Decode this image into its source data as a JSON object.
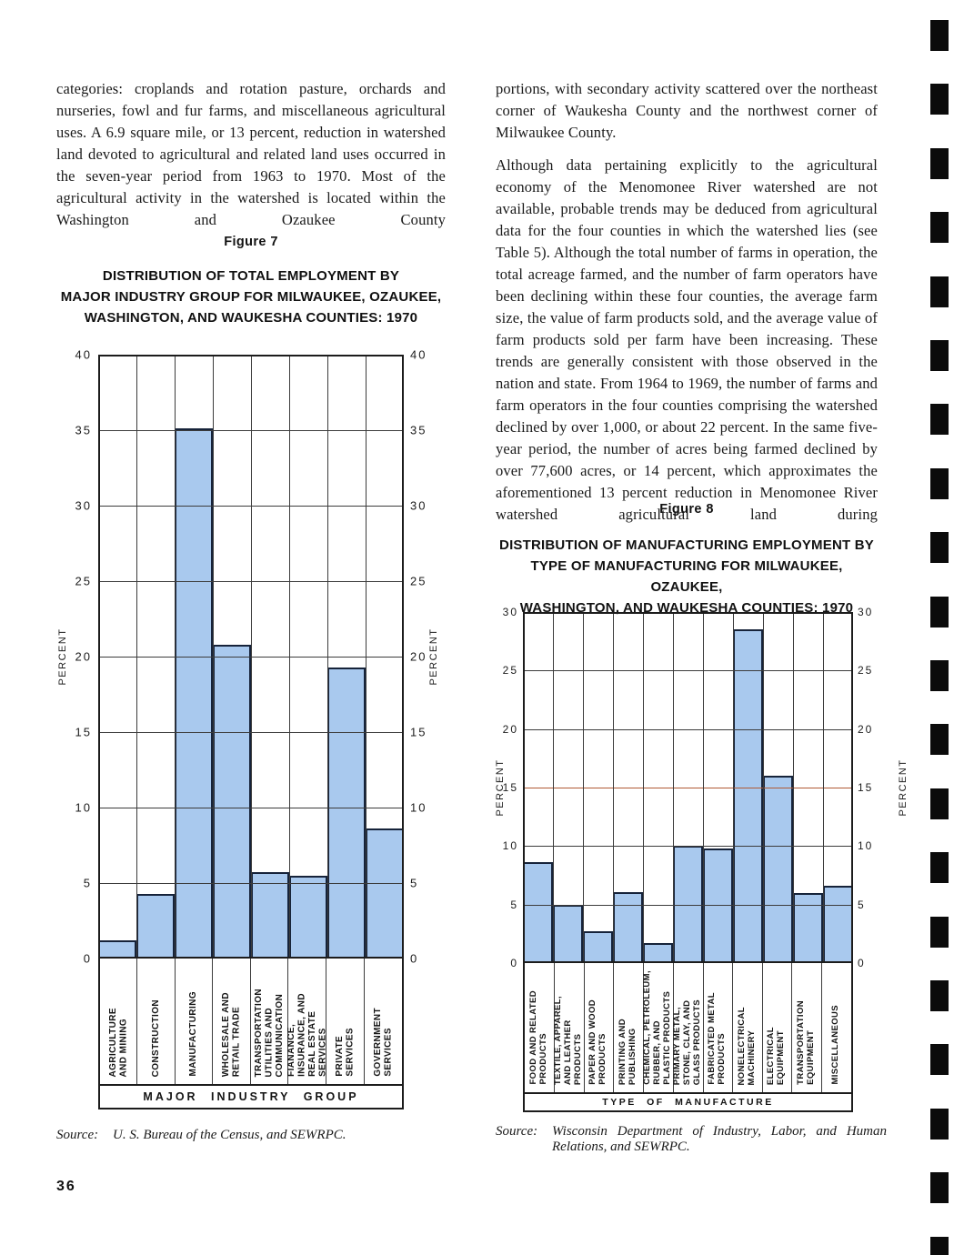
{
  "page": {
    "number": "36",
    "left_column_text": "categories: croplands and rotation pasture, orchards and nurseries, fowl and fur farms, and miscellaneous agricultural uses. A 6.9 square mile, or 13 percent, reduction in watershed land devoted to agricultural and related land uses occurred in the seven-year period from 1963 to 1970. Most of the agricultural activity in the watershed is located within the Washington and Ozaukee County",
    "right_column_paragraph_1": "portions, with secondary activity scattered over the northeast corner of Waukesha County and the northwest corner of Milwaukee County.",
    "right_column_paragraph_2": "Although data pertaining explicitly to the agricultural economy of the Menomonee River watershed are not available, probable trends may be deduced from agricultural data for the four counties in which the watershed lies (see Table 5). Although the total number of farms in operation, the total acreage farmed, and the number of farm operators have been declining within these four counties, the average farm size, the value of farm products sold, and the average value of farm products sold per farm have been increasing. These trends are generally consistent with those observed in the nation and state. From 1964 to 1969, the number of farms and farm operators in the four counties comprising the watershed declined by over 1,000, or about 22 percent. In the same five-year period, the number of acres being farmed declined by over 77,600 acres, or 14 percent, which approximates the aforementioned 13 percent reduction in Menomonee River watershed agricultural land during"
  },
  "figure7": {
    "caption": "Figure 7",
    "title_lines": [
      "DISTRIBUTION OF TOTAL EMPLOYMENT BY",
      "MAJOR INDUSTRY GROUP FOR MILWAUKEE, OZAUKEE,",
      "WASHINGTON, AND WAUKESHA COUNTIES: 1970"
    ],
    "source_label": "Source:",
    "source_body": "U. S. Bureau of the Census, and SEWRPC."
  },
  "figure8": {
    "caption": "Figure 8",
    "title_lines": [
      "DISTRIBUTION OF MANUFACTURING EMPLOYMENT BY",
      "TYPE OF MANUFACTURING FOR MILWAUKEE, OZAUKEE,",
      "WASHINGTON, AND WAUKESHA COUNTIES: 1970"
    ],
    "source_label": "Source:",
    "source_body": "Wisconsin Department of Industry, Labor, and Human Relations, and SEWRPC."
  },
  "decorations": {
    "binding_mark_count": 20
  },
  "chart_data": [
    {
      "id": "figure7",
      "type": "bar",
      "title": "DISTRIBUTION OF TOTAL EMPLOYMENT BY MAJOR INDUSTRY GROUP FOR MILWAUKEE, OZAUKEE, WASHINGTON, AND WAUKESHA COUNTIES: 1970",
      "categories": [
        "AGRICULTURE\nAND MINING",
        "CONSTRUCTION",
        "MANUFACTURING",
        "WHOLESALE AND\nRETAIL TRADE",
        "TRANSPORTATION\nUTILITIES AND\nCOMMUNICATION",
        "FIANANCE,\nINSURANCE, AND\nREAL ESTATE\nSERVICES",
        "PRIVATE\nSERVICES",
        "GOVERNMENT\nSERVICES"
      ],
      "values": [
        1.2,
        4.3,
        35.1,
        20.8,
        5.7,
        5.5,
        19.3,
        8.6
      ],
      "xlabel": "MAJOR INDUSTRY GROUP",
      "ylabel": "PERCENT",
      "ylim": [
        0,
        40
      ],
      "ytick_step": 5,
      "grid": true,
      "yticks_both_sides": true,
      "bar_fill": "#a9c9ee",
      "bar_border": "#16233a",
      "grid_color": "#3c3c3c",
      "frame_color": "#1c1c1c"
    },
    {
      "id": "figure8",
      "type": "bar",
      "title": "DISTRIBUTION OF MANUFACTURING EMPLOYMENT BY TYPE OF MANUFACTURING FOR MILWAUKEE, OZAUKEE, WASHINGTON, AND WAUKESHA COUNTIES: 1970",
      "categories": [
        "FOOD AND RELATED\nPRODUCTS",
        "TEXTILE, APPAREL,\nAND LEATHER\nPRODUCTS",
        "PAPER AND WOOD\nPRODUCTS",
        "PRINTING AND\nPUBLISHING",
        "CHEMICAL, PETROLEUM,\nRUBBER, AND\nPLASTIC PRODUCTS",
        "PRIMARY METAL,\nSTONE, CLAY, AND\nGLASS PRODUCTS",
        "FABRICATED METAL\nPRODUCTS",
        "NONELECTRICAL\nMACHINERY",
        "ELECTRICAL\nEQUIPMENT",
        "TRANSPORTATION\nEQUIPMENT",
        "MISCELLANEOUS"
      ],
      "values": [
        8.6,
        5.0,
        2.7,
        6.1,
        1.7,
        10.0,
        9.8,
        28.5,
        16.0,
        6.0,
        6.6
      ],
      "xlabel": "TYPE OF MANUFACTURE",
      "ylabel": "PERCENT",
      "ylim": [
        0,
        30
      ],
      "ytick_step": 5,
      "grid": true,
      "yticks_both_sides": true,
      "bar_fill": "#a9c9ee",
      "bar_border": "#16233a",
      "grid_color": "#3c3c3c",
      "frame_color": "#1c1c1c",
      "highlight_gridline": {
        "value": 15,
        "color": "#b05a35"
      }
    }
  ]
}
